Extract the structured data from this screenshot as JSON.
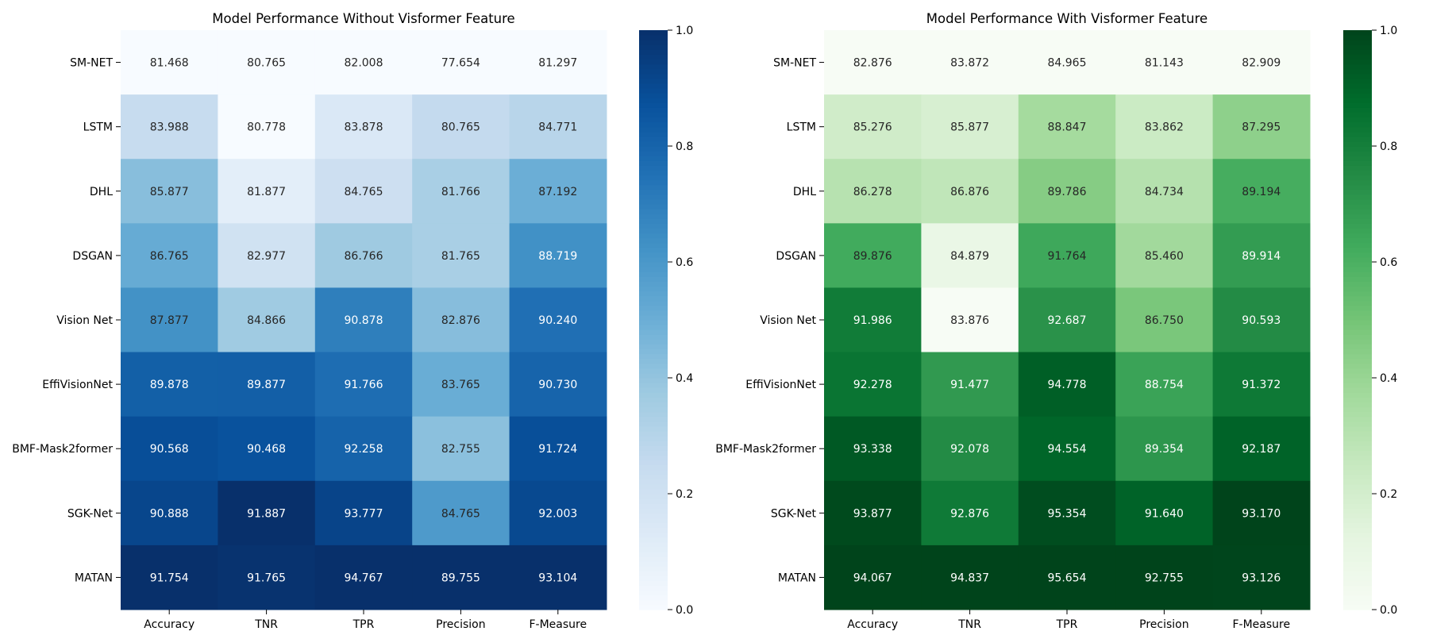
{
  "chart_data": [
    {
      "type": "heatmap",
      "title": "Model Performance Without Visformer Feature",
      "rows": [
        "SM-NET",
        "LSTM",
        "DHL",
        "DSGAN",
        "Vision Net",
        "EffiVisionNet",
        "BMF-Mask2former",
        "SGK-Net",
        "MATAN"
      ],
      "columns": [
        "Accuracy",
        "TNR",
        "TPR",
        "Precision",
        "F-Measure"
      ],
      "values": [
        [
          81.468,
          80.765,
          82.008,
          77.654,
          81.297
        ],
        [
          83.988,
          80.778,
          83.878,
          80.765,
          84.771
        ],
        [
          85.877,
          81.877,
          84.765,
          81.766,
          87.192
        ],
        [
          86.765,
          82.977,
          86.766,
          81.765,
          88.719
        ],
        [
          87.877,
          84.866,
          90.878,
          82.876,
          90.24
        ],
        [
          89.878,
          89.877,
          91.766,
          83.765,
          90.73
        ],
        [
          90.568,
          90.468,
          92.258,
          82.755,
          91.724
        ],
        [
          90.888,
          91.887,
          93.777,
          84.765,
          92.003
        ],
        [
          91.754,
          91.765,
          94.767,
          89.755,
          93.104
        ]
      ],
      "colormap": "Blues",
      "colorbar": {
        "range": [
          0,
          1
        ],
        "ticks": [
          "0.0",
          "0.2",
          "0.4",
          "0.6",
          "0.8",
          "1.0"
        ]
      }
    },
    {
      "type": "heatmap",
      "title": "Model Performance With Visformer Feature",
      "rows": [
        "SM-NET",
        "LSTM",
        "DHL",
        "DSGAN",
        "Vision Net",
        "EffiVisionNet",
        "BMF-Mask2former",
        "SGK-Net",
        "MATAN"
      ],
      "columns": [
        "Accuracy",
        "TNR",
        "TPR",
        "Precision",
        "F-Measure"
      ],
      "values": [
        [
          82.876,
          83.872,
          84.965,
          81.143,
          82.909
        ],
        [
          85.276,
          85.877,
          88.847,
          83.862,
          87.295
        ],
        [
          86.278,
          86.876,
          89.786,
          84.734,
          89.194
        ],
        [
          89.876,
          84.879,
          91.764,
          85.46,
          89.914
        ],
        [
          91.986,
          83.876,
          92.687,
          86.75,
          90.593
        ],
        [
          92.278,
          91.477,
          94.778,
          88.754,
          91.372
        ],
        [
          93.338,
          92.078,
          94.554,
          89.354,
          92.187
        ],
        [
          93.877,
          92.876,
          95.354,
          91.64,
          93.17
        ],
        [
          94.067,
          94.837,
          95.654,
          92.755,
          93.126
        ]
      ],
      "colormap": "Greens",
      "colorbar": {
        "range": [
          0,
          1
        ],
        "ticks": [
          "0.0",
          "0.2",
          "0.4",
          "0.6",
          "0.8",
          "1.0"
        ]
      }
    }
  ]
}
